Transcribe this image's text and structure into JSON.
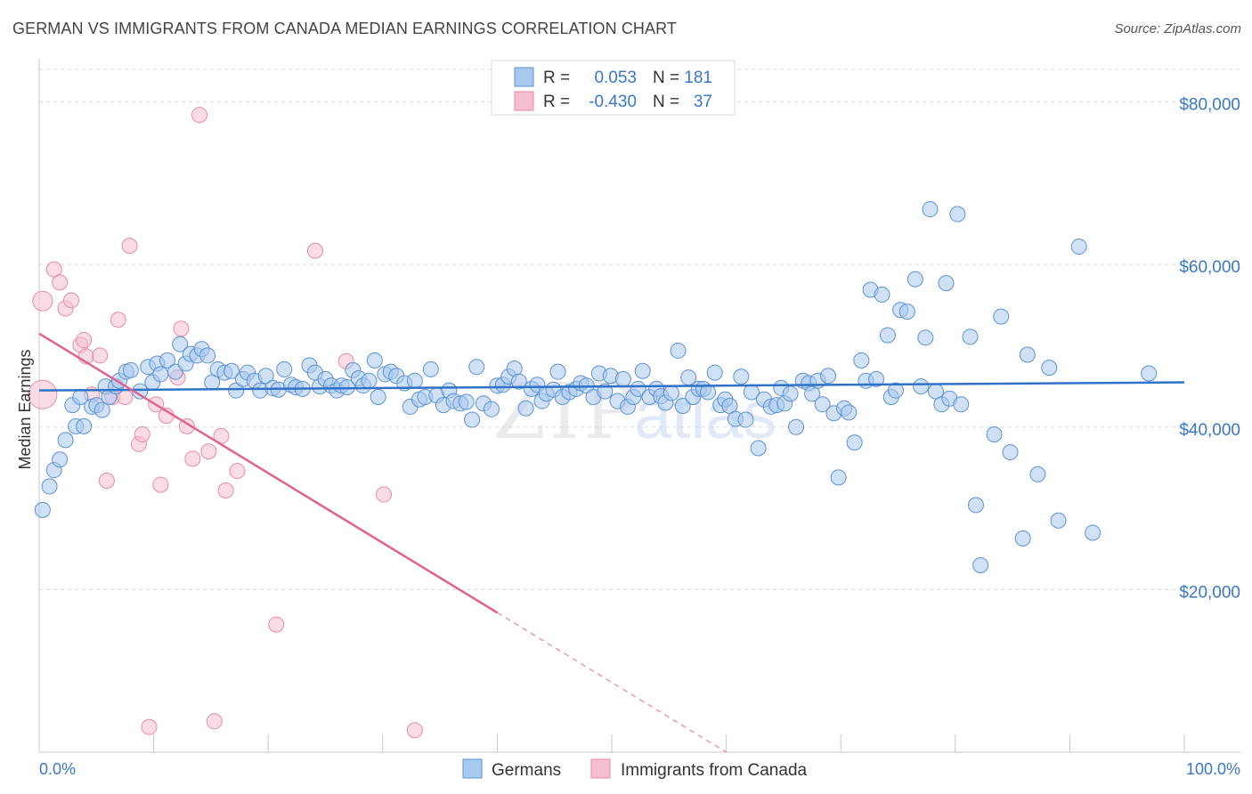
{
  "header": {
    "title": "GERMAN VS IMMIGRANTS FROM CANADA MEDIAN EARNINGS CORRELATION CHART",
    "source": "Source: ZipAtlas.com"
  },
  "watermark": {
    "zip": "ZIP",
    "atlas": "atlas"
  },
  "colors": {
    "germans_fill": "#a9c8ee",
    "germans_stroke": "#5b93d6",
    "germans_line": "#2f72c8",
    "canada_fill": "#f6bfd0",
    "canada_stroke": "#e88aa8",
    "canada_line": "#e0638d",
    "grid": "#d8dde6",
    "tick_text": "#3a78c6"
  },
  "chart_data": {
    "type": "scatter",
    "title": "GERMAN VS IMMIGRANTS FROM CANADA MEDIAN EARNINGS CORRELATION CHART",
    "xlabel": "",
    "ylabel": "Median Earnings",
    "xlim": [
      0,
      100
    ],
    "ylim": [
      0,
      84000
    ],
    "x_tick_labels": [
      "0.0%",
      "100.0%"
    ],
    "y_ticks": [
      {
        "value": 20000,
        "label": "$20,000"
      },
      {
        "value": 40000,
        "label": "$40,000"
      },
      {
        "value": 60000,
        "label": "$60,000"
      },
      {
        "value": 80000,
        "label": "$80,000"
      }
    ],
    "grid": "horizontal dashed",
    "legend_top": [
      {
        "r_label": "R =",
        "r_value": "0.053",
        "n_label": "N =",
        "n_value": "181"
      },
      {
        "r_label": "R =",
        "r_value": "-0.430",
        "n_label": "N =",
        "n_value": "37"
      }
    ],
    "legend_bottom": [
      "Germans",
      "Immigrants from Canada"
    ],
    "series": [
      {
        "name": "Germans",
        "trend": {
          "x": [
            0,
            100
          ],
          "y": [
            44500,
            45500
          ],
          "dashed_from": null
        },
        "points": [
          [
            0.3,
            29800
          ],
          [
            0.9,
            32700
          ],
          [
            1.3,
            34700
          ],
          [
            1.8,
            36000
          ],
          [
            2.3,
            38400
          ],
          [
            2.9,
            42700
          ],
          [
            3.2,
            40100
          ],
          [
            3.6,
            43700
          ],
          [
            3.9,
            40100
          ],
          [
            4.6,
            42500
          ],
          [
            5.0,
            42700
          ],
          [
            5.5,
            42100
          ],
          [
            5.8,
            45000
          ],
          [
            6.1,
            43700
          ],
          [
            6.7,
            45000
          ],
          [
            7.0,
            45700
          ],
          [
            7.6,
            46800
          ],
          [
            8.0,
            47000
          ],
          [
            8.8,
            44400
          ],
          [
            9.5,
            47400
          ],
          [
            9.9,
            45500
          ],
          [
            10.3,
            47800
          ],
          [
            10.6,
            46500
          ],
          [
            11.2,
            48200
          ],
          [
            11.9,
            46800
          ],
          [
            12.3,
            50200
          ],
          [
            12.8,
            47800
          ],
          [
            13.2,
            49000
          ],
          [
            13.8,
            48800
          ],
          [
            14.2,
            49600
          ],
          [
            14.7,
            48800
          ],
          [
            15.1,
            45500
          ],
          [
            15.6,
            47100
          ],
          [
            16.2,
            46700
          ],
          [
            16.8,
            46900
          ],
          [
            17.2,
            44500
          ],
          [
            17.8,
            45900
          ],
          [
            18.2,
            46700
          ],
          [
            18.8,
            45700
          ],
          [
            19.3,
            44500
          ],
          [
            19.8,
            46300
          ],
          [
            20.4,
            44800
          ],
          [
            20.9,
            44600
          ],
          [
            21.4,
            47100
          ],
          [
            22.0,
            45200
          ],
          [
            22.4,
            44900
          ],
          [
            23.0,
            44700
          ],
          [
            23.6,
            47600
          ],
          [
            24.1,
            46700
          ],
          [
            24.5,
            45000
          ],
          [
            25.0,
            45900
          ],
          [
            25.5,
            45100
          ],
          [
            26.0,
            44500
          ],
          [
            26.4,
            45100
          ],
          [
            26.9,
            44900
          ],
          [
            27.4,
            47000
          ],
          [
            27.9,
            46000
          ],
          [
            28.3,
            45100
          ],
          [
            28.8,
            45700
          ],
          [
            29.3,
            48200
          ],
          [
            29.6,
            43700
          ],
          [
            30.2,
            46500
          ],
          [
            30.7,
            46800
          ],
          [
            31.2,
            46300
          ],
          [
            31.9,
            45400
          ],
          [
            32.4,
            42500
          ],
          [
            32.8,
            45700
          ],
          [
            33.2,
            43400
          ],
          [
            33.7,
            43700
          ],
          [
            34.2,
            47100
          ],
          [
            34.7,
            43900
          ],
          [
            35.3,
            42700
          ],
          [
            35.8,
            44500
          ],
          [
            36.2,
            43200
          ],
          [
            36.8,
            42900
          ],
          [
            37.3,
            43100
          ],
          [
            37.8,
            40900
          ],
          [
            38.2,
            47400
          ],
          [
            38.8,
            42900
          ],
          [
            39.5,
            42200
          ],
          [
            40.0,
            45100
          ],
          [
            40.5,
            45200
          ],
          [
            41.0,
            46200
          ],
          [
            41.5,
            47200
          ],
          [
            41.9,
            45600
          ],
          [
            42.5,
            42300
          ],
          [
            43.0,
            44700
          ],
          [
            43.5,
            45200
          ],
          [
            43.9,
            43200
          ],
          [
            44.3,
            44100
          ],
          [
            44.9,
            44600
          ],
          [
            45.3,
            46800
          ],
          [
            45.7,
            43700
          ],
          [
            46.3,
            44300
          ],
          [
            46.9,
            44700
          ],
          [
            47.3,
            45400
          ],
          [
            47.8,
            45100
          ],
          [
            48.4,
            43700
          ],
          [
            48.9,
            46600
          ],
          [
            49.4,
            44400
          ],
          [
            49.9,
            46300
          ],
          [
            50.5,
            43200
          ],
          [
            51.0,
            45900
          ],
          [
            51.4,
            42500
          ],
          [
            51.9,
            43700
          ],
          [
            52.3,
            44700
          ],
          [
            52.7,
            46900
          ],
          [
            53.3,
            43700
          ],
          [
            53.9,
            44700
          ],
          [
            54.3,
            43800
          ],
          [
            54.7,
            43000
          ],
          [
            55.2,
            44200
          ],
          [
            55.8,
            49400
          ],
          [
            56.2,
            42600
          ],
          [
            56.7,
            46100
          ],
          [
            57.1,
            43700
          ],
          [
            57.6,
            44700
          ],
          [
            58.0,
            44700
          ],
          [
            58.4,
            44300
          ],
          [
            59.0,
            46700
          ],
          [
            59.5,
            42700
          ],
          [
            59.9,
            43400
          ],
          [
            60.3,
            42600
          ],
          [
            60.8,
            41000
          ],
          [
            61.3,
            46200
          ],
          [
            61.7,
            40900
          ],
          [
            62.2,
            44300
          ],
          [
            62.8,
            37400
          ],
          [
            63.3,
            43400
          ],
          [
            63.9,
            42500
          ],
          [
            64.4,
            42700
          ],
          [
            64.8,
            44800
          ],
          [
            65.1,
            42900
          ],
          [
            65.6,
            44100
          ],
          [
            66.1,
            40000
          ],
          [
            66.7,
            45700
          ],
          [
            67.2,
            45400
          ],
          [
            67.5,
            44100
          ],
          [
            68.0,
            45700
          ],
          [
            68.4,
            42800
          ],
          [
            68.9,
            46300
          ],
          [
            69.4,
            41700
          ],
          [
            69.8,
            33800
          ],
          [
            70.3,
            42300
          ],
          [
            70.7,
            41800
          ],
          [
            71.2,
            38100
          ],
          [
            71.8,
            48200
          ],
          [
            72.2,
            45700
          ],
          [
            72.6,
            56900
          ],
          [
            73.1,
            45900
          ],
          [
            73.6,
            56300
          ],
          [
            74.1,
            51300
          ],
          [
            74.4,
            43700
          ],
          [
            74.8,
            44500
          ],
          [
            75.2,
            54400
          ],
          [
            75.8,
            54200
          ],
          [
            76.5,
            58200
          ],
          [
            77.0,
            45000
          ],
          [
            77.4,
            51000
          ],
          [
            77.8,
            66800
          ],
          [
            78.3,
            44400
          ],
          [
            78.8,
            42800
          ],
          [
            79.2,
            57700
          ],
          [
            79.5,
            43500
          ],
          [
            80.2,
            66200
          ],
          [
            80.5,
            42800
          ],
          [
            81.3,
            51100
          ],
          [
            81.8,
            30400
          ],
          [
            82.2,
            23000
          ],
          [
            83.4,
            39100
          ],
          [
            84.0,
            53600
          ],
          [
            84.8,
            36900
          ],
          [
            85.9,
            26300
          ],
          [
            86.3,
            48900
          ],
          [
            87.2,
            34200
          ],
          [
            88.2,
            47300
          ],
          [
            89.0,
            28500
          ],
          [
            90.8,
            62200
          ],
          [
            92.0,
            27000
          ],
          [
            96.9,
            46600
          ]
        ]
      },
      {
        "name": "Immigrants from Canada",
        "trend": {
          "x": [
            0,
            60
          ],
          "y": [
            51500,
            0
          ],
          "dashed_from": 40
        },
        "points": [
          [
            0.3,
            55500
          ],
          [
            0.3,
            44000
          ],
          [
            1.3,
            59400
          ],
          [
            1.8,
            57800
          ],
          [
            2.3,
            54600
          ],
          [
            2.8,
            55600
          ],
          [
            3.6,
            50100
          ],
          [
            3.9,
            50700
          ],
          [
            4.1,
            48700
          ],
          [
            4.6,
            44000
          ],
          [
            5.3,
            48800
          ],
          [
            5.9,
            33400
          ],
          [
            6.4,
            43700
          ],
          [
            6.9,
            53200
          ],
          [
            7.5,
            43700
          ],
          [
            7.9,
            62300
          ],
          [
            8.7,
            37900
          ],
          [
            9.0,
            39100
          ],
          [
            9.6,
            3100
          ],
          [
            10.2,
            42800
          ],
          [
            10.6,
            32900
          ],
          [
            11.1,
            41400
          ],
          [
            12.1,
            46100
          ],
          [
            12.4,
            52100
          ],
          [
            12.9,
            40100
          ],
          [
            13.4,
            36100
          ],
          [
            14.0,
            78400
          ],
          [
            14.8,
            37000
          ],
          [
            15.3,
            3800
          ],
          [
            15.9,
            38900
          ],
          [
            16.3,
            32200
          ],
          [
            17.3,
            34600
          ],
          [
            20.7,
            15700
          ],
          [
            24.1,
            61700
          ],
          [
            26.8,
            48100
          ],
          [
            30.1,
            31700
          ],
          [
            32.8,
            2700
          ]
        ]
      }
    ]
  }
}
